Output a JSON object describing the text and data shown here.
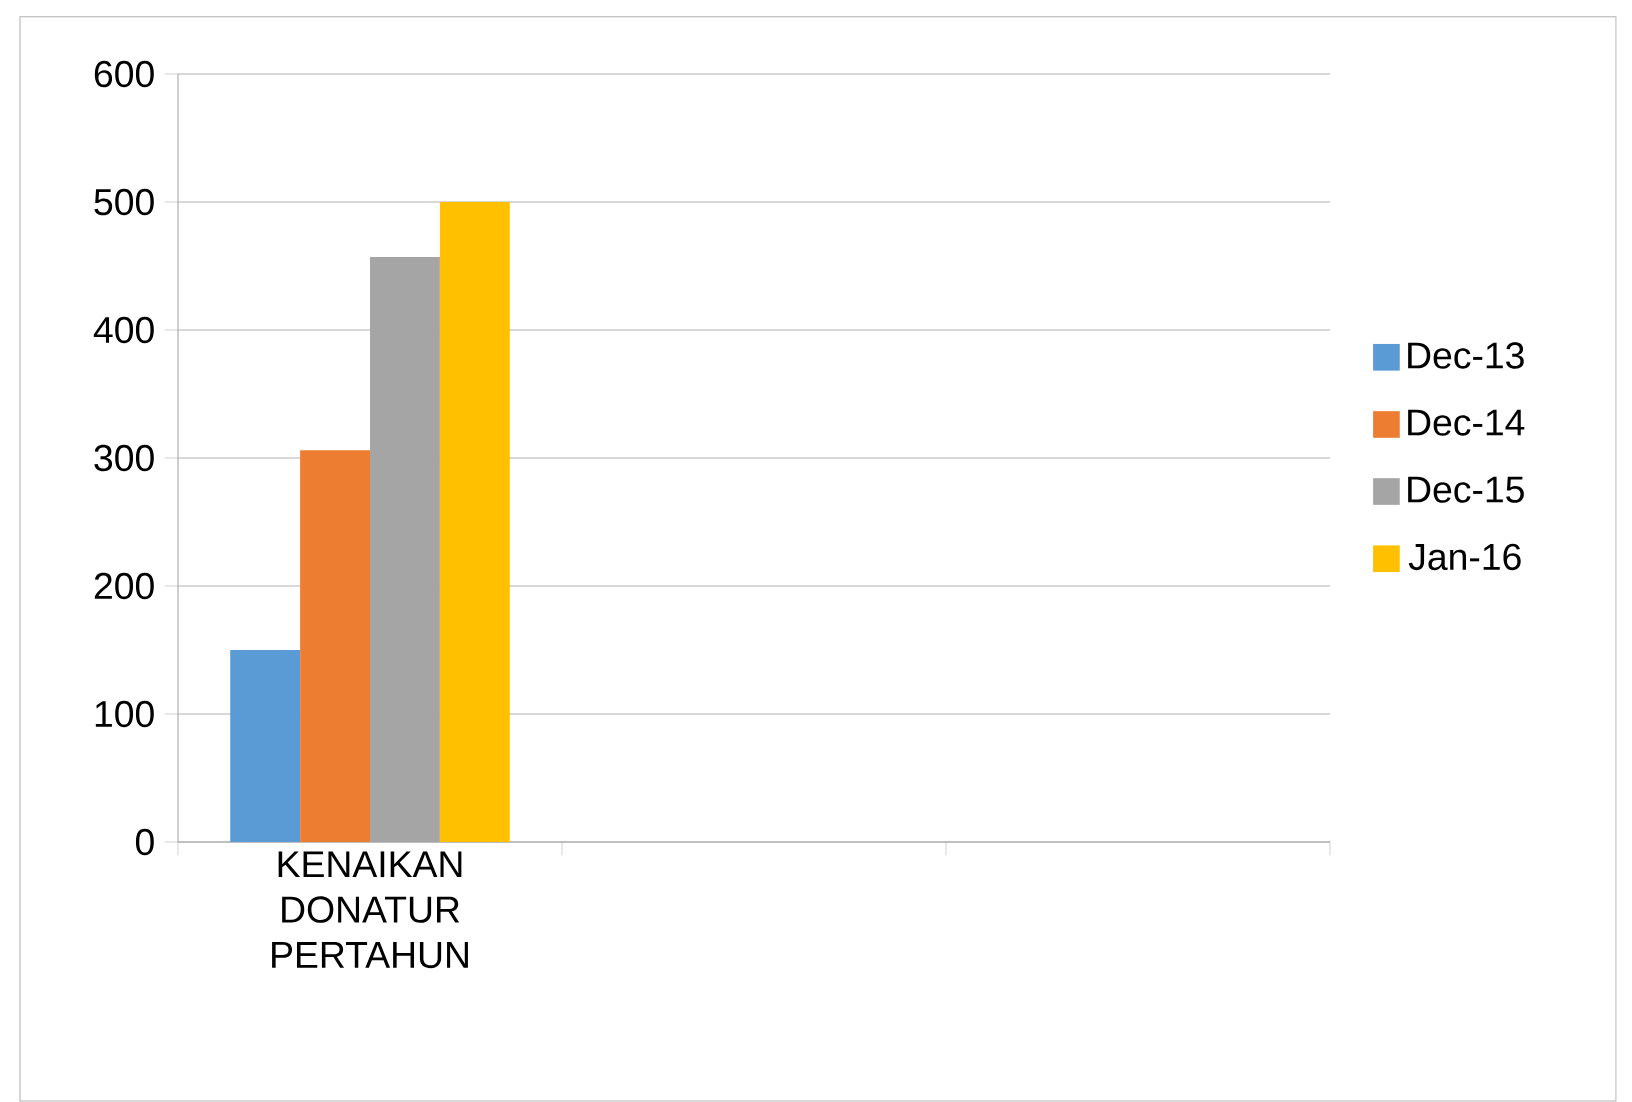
{
  "chart_data": {
    "type": "bar",
    "categories": [
      "KENAIKAN DONATUR PERTAHUN",
      null,
      null
    ],
    "series": [
      {
        "name": "Dec-13",
        "color": "#5b9bd5",
        "values": [
          150,
          null,
          null
        ]
      },
      {
        "name": "Dec-14",
        "color": "#ed7d31",
        "values": [
          306,
          null,
          null
        ]
      },
      {
        "name": "Dec-15",
        "color": "#a5a5a5",
        "values": [
          457,
          null,
          null
        ]
      },
      {
        "name": "Jan-16",
        "color": "#ffc000",
        "values": [
          500,
          null,
          null
        ]
      }
    ],
    "ylim": [
      0,
      600
    ],
    "yticks": [
      0,
      100,
      200,
      300,
      400,
      500,
      600
    ],
    "grid": "y",
    "legend": "right"
  }
}
